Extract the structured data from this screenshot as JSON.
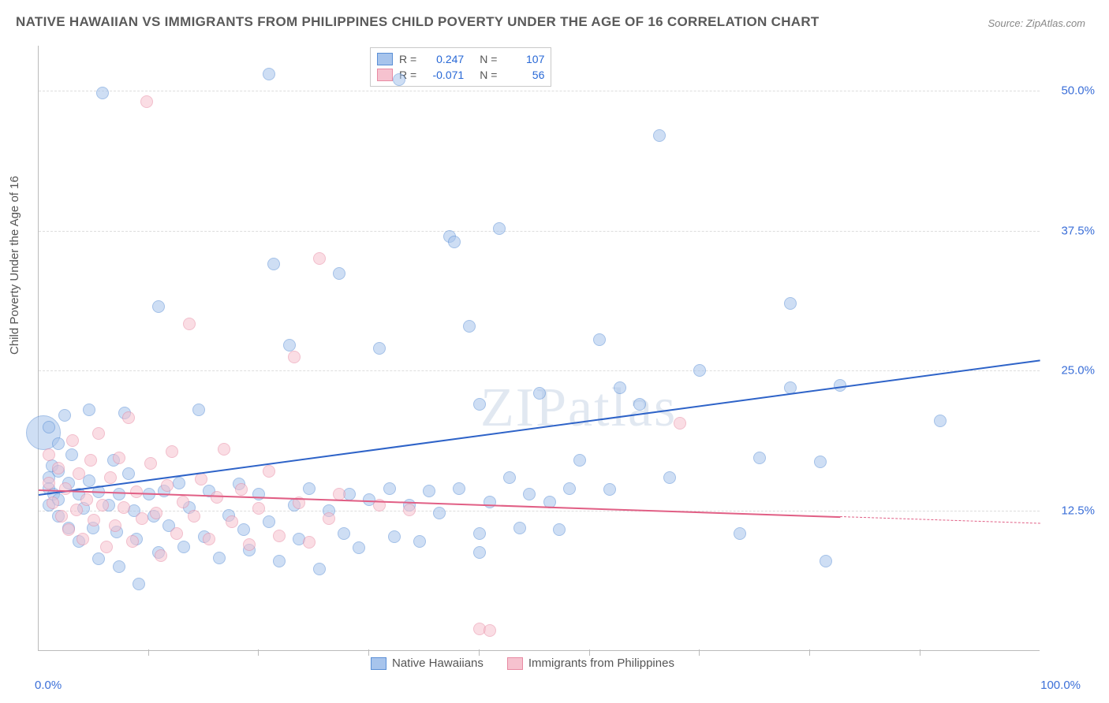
{
  "title": "NATIVE HAWAIIAN VS IMMIGRANTS FROM PHILIPPINES CHILD POVERTY UNDER THE AGE OF 16 CORRELATION CHART",
  "source": "Source: ZipAtlas.com",
  "yaxis_label": "Child Poverty Under the Age of 16",
  "watermark": "ZIPatlas",
  "chart": {
    "type": "scatter",
    "xlim": [
      0,
      100
    ],
    "ylim": [
      0,
      54
    ],
    "grid_y": [
      12.5,
      25.0,
      37.5,
      50.0
    ],
    "grid_color": "#dddddd",
    "axis_color": "#bbbbbb",
    "background_color": "#ffffff",
    "xticks_marks": [
      11,
      22,
      33,
      44,
      55,
      66,
      77,
      88
    ],
    "xticks_labels": [
      {
        "x": 0,
        "label": "0.0%"
      },
      {
        "x": 100,
        "label": "100.0%"
      }
    ],
    "yticks_labels": [
      {
        "y": 12.5,
        "label": "12.5%"
      },
      {
        "y": 25.0,
        "label": "25.0%"
      },
      {
        "y": 37.5,
        "label": "37.5%"
      },
      {
        "y": 50.0,
        "label": "50.0%"
      }
    ],
    "yticks_fontsize": 15,
    "ytick_color": "#3b6fd8",
    "xtick_color": "#3b6fd8",
    "marker_radius": 8,
    "marker_opacity": 0.55,
    "series": [
      {
        "name": "Native Hawaiians",
        "fill_color": "#a7c4ec",
        "stroke_color": "#5a8fd6",
        "line_color": "#2e63c8",
        "R": "0.247",
        "N": "107",
        "trend": {
          "x1": 0,
          "y1": 14.0,
          "x2": 100,
          "y2": 26.0
        },
        "points": [
          [
            1,
            20
          ],
          [
            1,
            15.5
          ],
          [
            1,
            14.5
          ],
          [
            1,
            13
          ],
          [
            1.3,
            16.5
          ],
          [
            1.5,
            14
          ],
          [
            2,
            18.5
          ],
          [
            2,
            16
          ],
          [
            2,
            13.5
          ],
          [
            2,
            12
          ],
          [
            2.6,
            21
          ],
          [
            3,
            15
          ],
          [
            3,
            11
          ],
          [
            3.3,
            17.5
          ],
          [
            4,
            14
          ],
          [
            4,
            9.8
          ],
          [
            4.5,
            12.7
          ],
          [
            5,
            21.5
          ],
          [
            5,
            15.2
          ],
          [
            5.4,
            11
          ],
          [
            6,
            14.2
          ],
          [
            6,
            8.2
          ],
          [
            6.4,
            49.8
          ],
          [
            7,
            13
          ],
          [
            7.5,
            17
          ],
          [
            7.8,
            10.6
          ],
          [
            8,
            14
          ],
          [
            8,
            7.5
          ],
          [
            8.6,
            21.2
          ],
          [
            9,
            15.8
          ],
          [
            9.5,
            12.5
          ],
          [
            9.8,
            10
          ],
          [
            10,
            6
          ],
          [
            11,
            14
          ],
          [
            11.5,
            12
          ],
          [
            12,
            30.7
          ],
          [
            12,
            8.8
          ],
          [
            12.5,
            14.3
          ],
          [
            13,
            11.2
          ],
          [
            14,
            15
          ],
          [
            14.5,
            9.3
          ],
          [
            15,
            12.8
          ],
          [
            16,
            21.5
          ],
          [
            16.5,
            10.2
          ],
          [
            17,
            14.3
          ],
          [
            18,
            8.3
          ],
          [
            19,
            12.1
          ],
          [
            20,
            14.9
          ],
          [
            20.5,
            10.8
          ],
          [
            21,
            9
          ],
          [
            22,
            14
          ],
          [
            23,
            51.5
          ],
          [
            23,
            11.5
          ],
          [
            23.5,
            34.5
          ],
          [
            24,
            8
          ],
          [
            25,
            27.3
          ],
          [
            25.5,
            13
          ],
          [
            26,
            10
          ],
          [
            27,
            14.5
          ],
          [
            28,
            7.3
          ],
          [
            29,
            12.5
          ],
          [
            30,
            33.7
          ],
          [
            30.5,
            10.5
          ],
          [
            31,
            14
          ],
          [
            32,
            9.2
          ],
          [
            33,
            13.5
          ],
          [
            34,
            27
          ],
          [
            35,
            14.5
          ],
          [
            35.5,
            10.2
          ],
          [
            36,
            51
          ],
          [
            37,
            13
          ],
          [
            38,
            9.8
          ],
          [
            39,
            14.3
          ],
          [
            40,
            12.3
          ],
          [
            41,
            37
          ],
          [
            41.5,
            36.5
          ],
          [
            42,
            14.5
          ],
          [
            43,
            29
          ],
          [
            44,
            22
          ],
          [
            44,
            10.5
          ],
          [
            44,
            8.8
          ],
          [
            45,
            13.3
          ],
          [
            46,
            37.7
          ],
          [
            47,
            15.5
          ],
          [
            48,
            11
          ],
          [
            49,
            14
          ],
          [
            50,
            23
          ],
          [
            51,
            13.3
          ],
          [
            52,
            10.8
          ],
          [
            53,
            14.5
          ],
          [
            54,
            17
          ],
          [
            56,
            27.8
          ],
          [
            57,
            14.4
          ],
          [
            58,
            23.5
          ],
          [
            60,
            22
          ],
          [
            62,
            46
          ],
          [
            63,
            15.5
          ],
          [
            66,
            25
          ],
          [
            70,
            10.5
          ],
          [
            72,
            17.2
          ],
          [
            75,
            23.5
          ],
          [
            75,
            31
          ],
          [
            78,
            16.9
          ],
          [
            78.6,
            8
          ],
          [
            80,
            23.7
          ],
          [
            90,
            20.5
          ]
        ],
        "large_points": [
          [
            0.5,
            19.5,
            22
          ]
        ]
      },
      {
        "name": "Immigrants from Philippines",
        "fill_color": "#f6c2cf",
        "stroke_color": "#e88aa3",
        "line_color": "#e15f85",
        "R": "-0.071",
        "N": "56",
        "trend": {
          "x1": 0,
          "y1": 14.4,
          "x2": 80,
          "y2": 12.0
        },
        "trend_extend": {
          "x1": 80,
          "y1": 12.0,
          "x2": 100,
          "y2": 11.4
        },
        "points": [
          [
            1,
            17.5
          ],
          [
            1,
            15
          ],
          [
            1.4,
            13.2
          ],
          [
            2,
            16.3
          ],
          [
            2.3,
            12
          ],
          [
            2.7,
            14.5
          ],
          [
            3,
            10.8
          ],
          [
            3.4,
            18.8
          ],
          [
            3.8,
            12.6
          ],
          [
            4,
            15.8
          ],
          [
            4.4,
            10
          ],
          [
            4.8,
            13.5
          ],
          [
            5.2,
            17
          ],
          [
            5.5,
            11.7
          ],
          [
            6,
            19.4
          ],
          [
            6.4,
            13
          ],
          [
            6.8,
            9.3
          ],
          [
            7.2,
            15.5
          ],
          [
            7.6,
            11.2
          ],
          [
            8,
            17.2
          ],
          [
            8.5,
            12.8
          ],
          [
            9,
            20.8
          ],
          [
            9.4,
            9.8
          ],
          [
            9.8,
            14.2
          ],
          [
            10.3,
            11.8
          ],
          [
            10.8,
            49
          ],
          [
            11.2,
            16.7
          ],
          [
            11.7,
            12.3
          ],
          [
            12.2,
            8.5
          ],
          [
            12.8,
            14.8
          ],
          [
            13.3,
            17.8
          ],
          [
            13.8,
            10.5
          ],
          [
            14.4,
            13.3
          ],
          [
            15,
            29.2
          ],
          [
            15.5,
            12
          ],
          [
            16.2,
            15.3
          ],
          [
            17,
            10
          ],
          [
            17.8,
            13.7
          ],
          [
            18.5,
            18
          ],
          [
            19.3,
            11.5
          ],
          [
            20.2,
            14.4
          ],
          [
            21,
            9.5
          ],
          [
            22,
            12.7
          ],
          [
            23,
            16
          ],
          [
            24,
            10.3
          ],
          [
            25.5,
            26.2
          ],
          [
            26,
            13.2
          ],
          [
            27,
            9.7
          ],
          [
            28,
            35
          ],
          [
            29,
            11.8
          ],
          [
            30,
            14
          ],
          [
            34,
            13
          ],
          [
            37,
            12.6
          ],
          [
            44,
            2
          ],
          [
            45,
            1.8
          ],
          [
            64,
            20.3
          ]
        ]
      }
    ],
    "bottom_legend": [
      {
        "swatch_fill": "#a7c4ec",
        "swatch_stroke": "#5a8fd6",
        "label": "Native Hawaiians"
      },
      {
        "swatch_fill": "#f6c2cf",
        "swatch_stroke": "#e88aa3",
        "label": "Immigrants from Philippines"
      }
    ]
  }
}
